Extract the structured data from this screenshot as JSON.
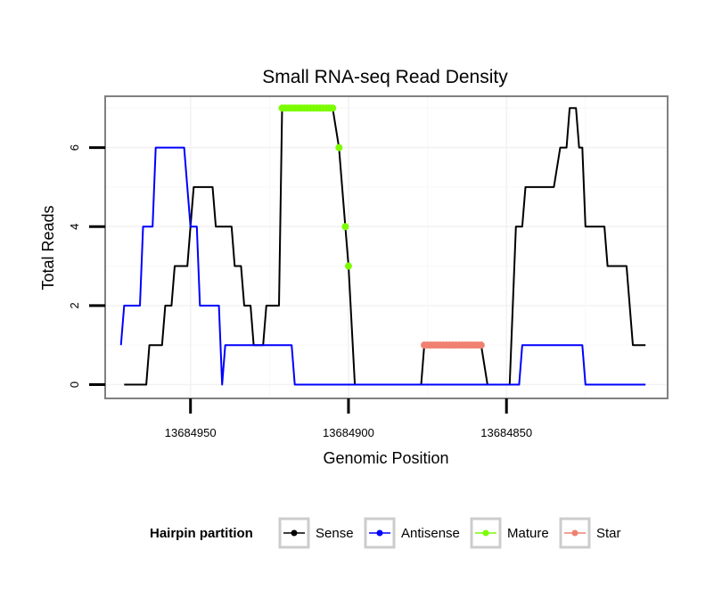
{
  "chart_data": {
    "type": "line",
    "title": "Small RNA-seq Read Density",
    "xlabel": "Genomic Position",
    "ylabel": "Total Reads",
    "xlim": [
      13684977,
      13684799
    ],
    "x_reversed": true,
    "ylim": [
      -0.35,
      7.3
    ],
    "x_ticks": [
      13684950,
      13684900,
      13684850
    ],
    "x_tick_labels": [
      "13684950",
      "13684900",
      "13684850"
    ],
    "y_ticks": [
      0,
      2,
      4,
      6
    ],
    "y_tick_labels": [
      "0",
      "2",
      "4",
      "6"
    ],
    "grid": true,
    "legend_position": "bottom",
    "legend_title": "Hairpin partition",
    "series": [
      {
        "name": "Sense",
        "color": "#000000",
        "style": "line",
        "points": [
          [
            13684971,
            0
          ],
          [
            13684964,
            0
          ],
          [
            13684963,
            1
          ],
          [
            13684959,
            1
          ],
          [
            13684958,
            2
          ],
          [
            13684956,
            2
          ],
          [
            13684955,
            3
          ],
          [
            13684951,
            3
          ],
          [
            13684950,
            4
          ],
          [
            13684949,
            5
          ],
          [
            13684943,
            5
          ],
          [
            13684942,
            4
          ],
          [
            13684937,
            4
          ],
          [
            13684936,
            3
          ],
          [
            13684934,
            3
          ],
          [
            13684933,
            2
          ],
          [
            13684931,
            2
          ],
          [
            13684930,
            1
          ],
          [
            13684927,
            1
          ],
          [
            13684926,
            2
          ],
          [
            13684922,
            2
          ],
          [
            13684921,
            7
          ],
          [
            13684905,
            7
          ],
          [
            13684903,
            6
          ],
          [
            13684901,
            4
          ],
          [
            13684900,
            3
          ],
          [
            13684898,
            0
          ],
          [
            13684877,
            0
          ],
          [
            13684876,
            1
          ],
          [
            13684858,
            1
          ],
          [
            13684856,
            0
          ],
          [
            13684849,
            0
          ],
          [
            13684847,
            4
          ],
          [
            13684845,
            4
          ],
          [
            13684844,
            5
          ],
          [
            13684835,
            5
          ],
          [
            13684833,
            6
          ],
          [
            13684831,
            6
          ],
          [
            13684830,
            7
          ],
          [
            13684828,
            7
          ],
          [
            13684827,
            6
          ],
          [
            13684826,
            6
          ],
          [
            13684825,
            4
          ],
          [
            13684819,
            4
          ],
          [
            13684818,
            3
          ],
          [
            13684812,
            3
          ],
          [
            13684810,
            1
          ],
          [
            13684806,
            1
          ]
        ]
      },
      {
        "name": "Antisense",
        "color": "#0000ff",
        "style": "line",
        "points": [
          [
            13684972,
            1
          ],
          [
            13684971,
            2
          ],
          [
            13684966,
            2
          ],
          [
            13684965,
            4
          ],
          [
            13684962,
            4
          ],
          [
            13684961,
            6
          ],
          [
            13684952,
            6
          ],
          [
            13684950,
            4
          ],
          [
            13684948,
            4
          ],
          [
            13684947,
            2
          ],
          [
            13684941,
            2
          ],
          [
            13684940,
            0
          ],
          [
            13684939,
            1
          ],
          [
            13684918,
            1
          ],
          [
            13684917,
            0
          ],
          [
            13684846,
            0
          ],
          [
            13684845,
            1
          ],
          [
            13684826,
            1
          ],
          [
            13684825,
            0
          ],
          [
            13684806,
            0
          ]
        ]
      },
      {
        "name": "Mature",
        "color": "#7cfc00",
        "style": "points",
        "points": [
          [
            13684921,
            7
          ],
          [
            13684920,
            7
          ],
          [
            13684919,
            7
          ],
          [
            13684918,
            7
          ],
          [
            13684917,
            7
          ],
          [
            13684916,
            7
          ],
          [
            13684915,
            7
          ],
          [
            13684914,
            7
          ],
          [
            13684913,
            7
          ],
          [
            13684912,
            7
          ],
          [
            13684911,
            7
          ],
          [
            13684910,
            7
          ],
          [
            13684909,
            7
          ],
          [
            13684908,
            7
          ],
          [
            13684907,
            7
          ],
          [
            13684906,
            7
          ],
          [
            13684905,
            7
          ],
          [
            13684903,
            6
          ],
          [
            13684901,
            4
          ],
          [
            13684900,
            3
          ]
        ]
      },
      {
        "name": "Star",
        "color": "#f08070",
        "style": "points",
        "points": [
          [
            13684876,
            1
          ],
          [
            13684875,
            1
          ],
          [
            13684874,
            1
          ],
          [
            13684873,
            1
          ],
          [
            13684872,
            1
          ],
          [
            13684871,
            1
          ],
          [
            13684870,
            1
          ],
          [
            13684869,
            1
          ],
          [
            13684868,
            1
          ],
          [
            13684867,
            1
          ],
          [
            13684866,
            1
          ],
          [
            13684865,
            1
          ],
          [
            13684864,
            1
          ],
          [
            13684863,
            1
          ],
          [
            13684862,
            1
          ],
          [
            13684861,
            1
          ],
          [
            13684860,
            1
          ],
          [
            13684859,
            1
          ],
          [
            13684858,
            1
          ]
        ]
      }
    ],
    "legend_entries": [
      {
        "label": "Sense",
        "color": "#000000"
      },
      {
        "label": "Antisense",
        "color": "#0000ff"
      },
      {
        "label": "Mature",
        "color": "#7cfc00"
      },
      {
        "label": "Star",
        "color": "#f08070"
      }
    ]
  }
}
